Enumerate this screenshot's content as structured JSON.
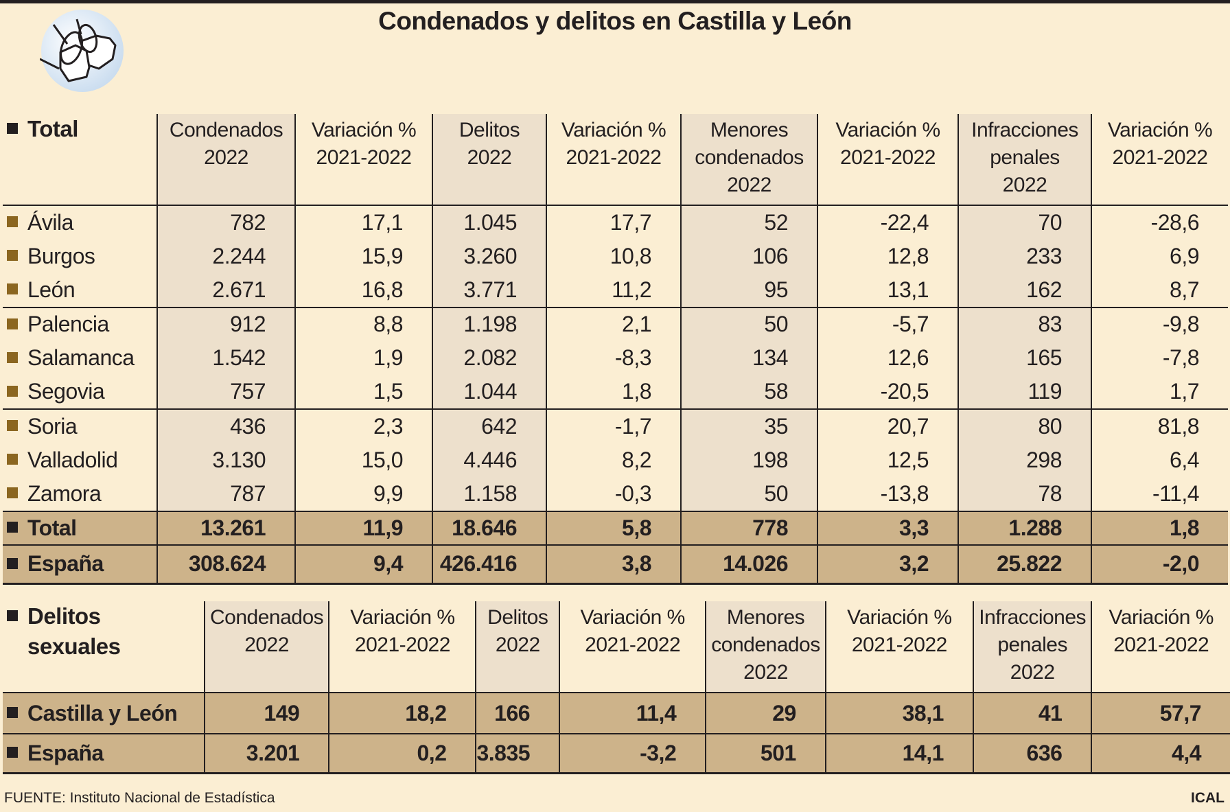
{
  "title": "Condenados y delitos en Castilla y León",
  "colors": {
    "background": "#fbeed3",
    "shaded_column": "#ede0cc",
    "total_rows": "#cdb38a",
    "province_bullet": "#8b6620",
    "dark_bullet": "#231f20"
  },
  "logo_icon": "handcuffs-icon",
  "table1": {
    "label": "Total",
    "headers": [
      [
        "Condenados",
        "2022"
      ],
      [
        "Variación %",
        "2021-2022"
      ],
      [
        "Delitos",
        "2022"
      ],
      [
        "Variación %",
        "2021-2022"
      ],
      [
        "Menores",
        "condenados",
        "2022"
      ],
      [
        "Variación %",
        "2021-2022"
      ],
      [
        "Infracciones",
        "penales",
        "2022"
      ],
      [
        "Variación %",
        "2021-2022"
      ]
    ],
    "rows": [
      {
        "name": "Ávila",
        "values": [
          "782",
          "17,1",
          "1.045",
          "17,7",
          "52",
          "-22,4",
          "70",
          "-28,6"
        ]
      },
      {
        "name": "Burgos",
        "values": [
          "2.244",
          "15,9",
          "3.260",
          "10,8",
          "106",
          "12,8",
          "233",
          "6,9"
        ]
      },
      {
        "name": "León",
        "values": [
          "2.671",
          "16,8",
          "3.771",
          "11,2",
          "95",
          "13,1",
          "162",
          "8,7"
        ]
      },
      {
        "name": "Palencia",
        "values": [
          "912",
          "8,8",
          "1.198",
          "2,1",
          "50",
          "-5,7",
          "83",
          "-9,8"
        ]
      },
      {
        "name": "Salamanca",
        "values": [
          "1.542",
          "1,9",
          "2.082",
          "-8,3",
          "134",
          "12,6",
          "165",
          "-7,8"
        ]
      },
      {
        "name": "Segovia",
        "values": [
          "757",
          "1,5",
          "1.044",
          "1,8",
          "58",
          "-20,5",
          "119",
          "1,7"
        ]
      },
      {
        "name": "Soria",
        "values": [
          "436",
          "2,3",
          "642",
          "-1,7",
          "35",
          "20,7",
          "80",
          "81,8"
        ]
      },
      {
        "name": "Valladolid",
        "values": [
          "3.130",
          "15,0",
          "4.446",
          "8,2",
          "198",
          "12,5",
          "298",
          "6,4"
        ]
      },
      {
        "name": "Zamora",
        "values": [
          "787",
          "9,9",
          "1.158",
          "-0,3",
          "50",
          "-13,8",
          "78",
          "-11,4"
        ]
      }
    ],
    "totals": [
      {
        "name": "Total",
        "values": [
          "13.261",
          "11,9",
          "18.646",
          "5,8",
          "778",
          "3,3",
          "1.288",
          "1,8"
        ]
      },
      {
        "name": "España",
        "values": [
          "308.624",
          "9,4",
          "426.416",
          "3,8",
          "14.026",
          "3,2",
          "25.822",
          "-2,0"
        ]
      }
    ]
  },
  "table2": {
    "label": [
      "Delitos",
      "sexuales"
    ],
    "headers": [
      [
        "Condenados",
        "2022"
      ],
      [
        "Variación %",
        "2021-2022"
      ],
      [
        "Delitos",
        "2022"
      ],
      [
        "Variación %",
        "2021-2022"
      ],
      [
        "Menores",
        "condenados",
        "2022"
      ],
      [
        "Variación %",
        "2021-2022"
      ],
      [
        "Infracciones",
        "penales",
        "2022"
      ],
      [
        "Variación %",
        "2021-2022"
      ]
    ],
    "totals": [
      {
        "name": "Castilla y León",
        "values": [
          "149",
          "18,2",
          "166",
          "11,4",
          "29",
          "38,1",
          "41",
          "57,7"
        ]
      },
      {
        "name": "España",
        "values": [
          "3.201",
          "0,2",
          "3.835",
          "-3,2",
          "501",
          "14,1",
          "636",
          "4,4"
        ]
      }
    ]
  },
  "footer": {
    "source": "FUENTE: Instituto Nacional de Estadística",
    "brand": "ICAL"
  }
}
